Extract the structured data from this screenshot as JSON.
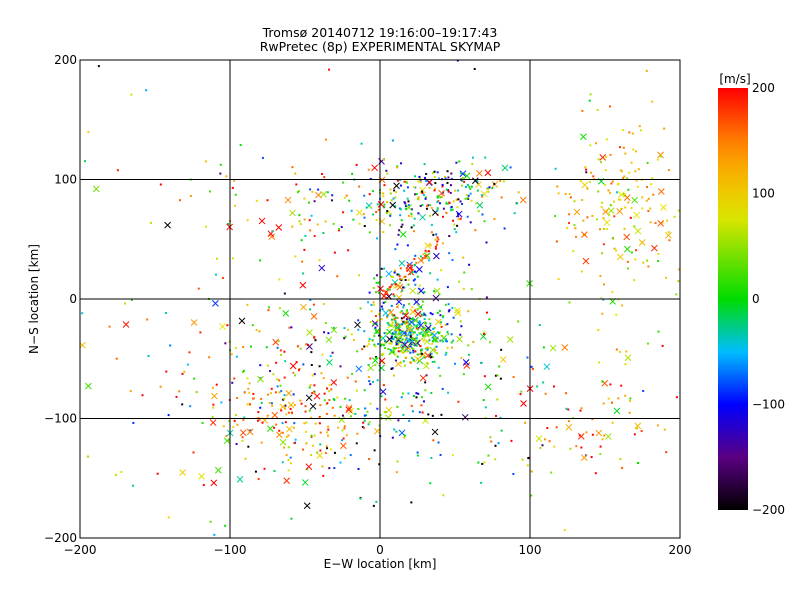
{
  "chart_data": {
    "type": "scatter",
    "title": "Tromsø 20140712 19:16:00–19:17:43",
    "subtitle": "RwPretec (8p) EXPERIMENTAL SKYMAP",
    "xlabel": "E−W location [km]",
    "ylabel": "N−S location [km]",
    "xlim": [
      -200,
      200
    ],
    "ylim": [
      -200,
      200
    ],
    "xticks": [
      -200,
      -100,
      0,
      100,
      200
    ],
    "yticks": [
      -200,
      -100,
      0,
      100,
      200
    ],
    "grid": "on",
    "colorbar": {
      "label": "[m/s]",
      "range": [
        -200,
        200
      ],
      "ticks": [
        200,
        100,
        0,
        -100,
        -200
      ],
      "colormap": "rainbow"
    },
    "markers": [
      "point",
      "x"
    ],
    "clusters": [
      {
        "x": 20,
        "y": -30,
        "sx": 14,
        "sy": 12,
        "n": 320,
        "v": 20,
        "sv": 70
      },
      {
        "x": 30,
        "y": 85,
        "sx": 28,
        "sy": 15,
        "n": 260,
        "v": -20,
        "sv": 110
      },
      {
        "x": 25,
        "y": 5,
        "sx": 18,
        "sy": 25,
        "n": 150,
        "v": -20,
        "sv": 90
      },
      {
        "x": 0,
        "y": -80,
        "sx": 60,
        "sy": 40,
        "n": 280,
        "v": -20,
        "sv": 110
      },
      {
        "x": -50,
        "y": -100,
        "sx": 30,
        "sy": 20,
        "n": 120,
        "v": 140,
        "sv": 50
      },
      {
        "x": 160,
        "y": 80,
        "sx": 22,
        "sy": 40,
        "n": 180,
        "v": 100,
        "sv": 50
      },
      {
        "x": 140,
        "y": -100,
        "sx": 40,
        "sy": 30,
        "n": 80,
        "v": 140,
        "sv": 60
      },
      {
        "x": -90,
        "y": -60,
        "sx": 50,
        "sy": 60,
        "n": 120,
        "v": 120,
        "sv": 90
      },
      {
        "x": -60,
        "y": 80,
        "sx": 40,
        "sy": 30,
        "n": 60,
        "v": 120,
        "sv": 90
      },
      {
        "x": 0,
        "y": 0,
        "sx": 130,
        "sy": 110,
        "n": 150,
        "v": 0,
        "sv": 140
      }
    ],
    "streak": {
      "x0": 0,
      "y0": 0,
      "x1": 40,
      "y1": 50,
      "n": 45,
      "v": 170
    }
  }
}
